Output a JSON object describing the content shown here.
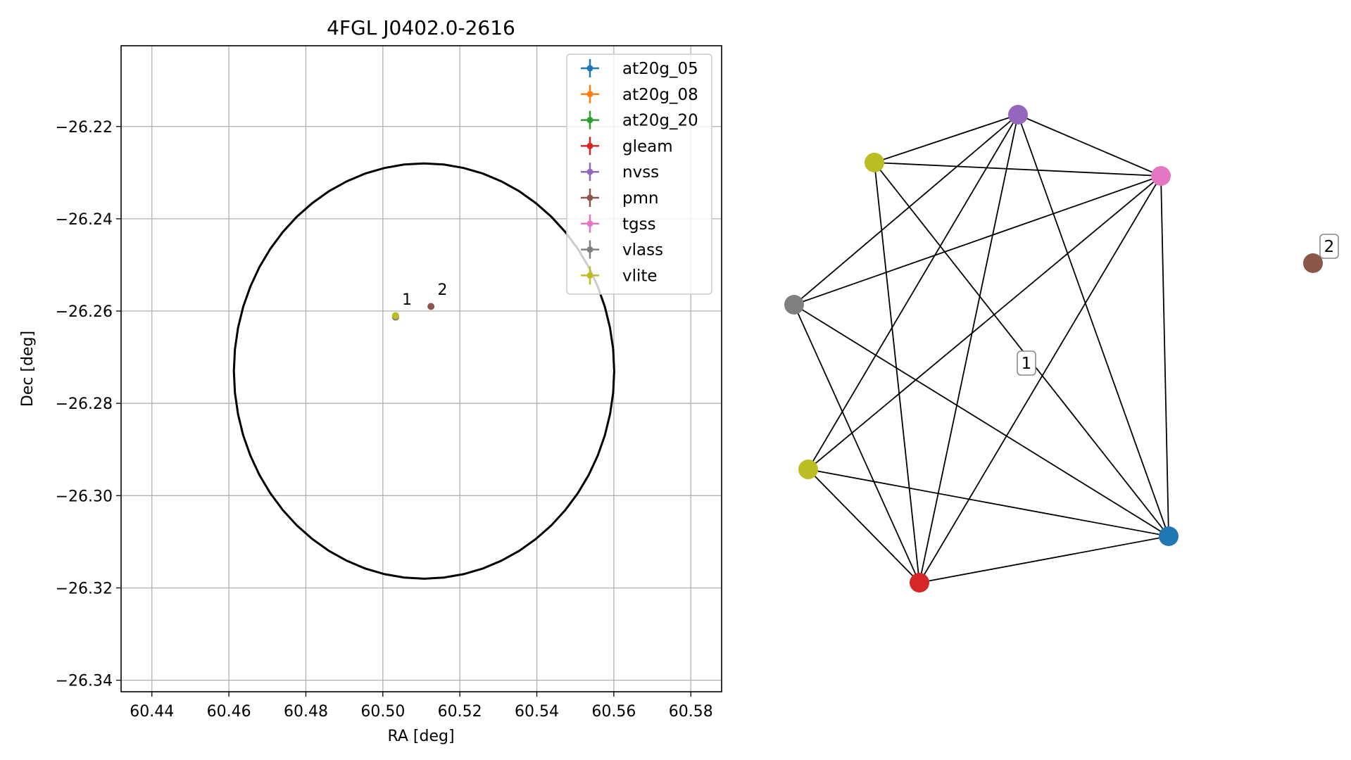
{
  "chart_data": [
    {
      "type": "scatter",
      "title": "4FGL J0402.0-2616",
      "xlabel": "RA [deg]",
      "ylabel": "Dec [deg]",
      "xlim": [
        60.432,
        60.588
      ],
      "ylim": [
        -26.3425,
        -26.2025
      ],
      "xticks": [
        "60.44",
        "60.46",
        "60.48",
        "60.50",
        "60.52",
        "60.54",
        "60.56",
        "60.58"
      ],
      "xtick_values": [
        60.44,
        60.46,
        60.48,
        60.5,
        60.52,
        60.54,
        60.56,
        60.58
      ],
      "yticks": [
        "−26.22",
        "−26.24",
        "−26.26",
        "−26.28",
        "−26.30",
        "−26.32",
        "−26.34"
      ],
      "ytick_values": [
        -26.22,
        -26.24,
        -26.26,
        -26.28,
        -26.3,
        -26.32,
        -26.34
      ],
      "grid": true,
      "legend_position": "top-right",
      "series": [
        {
          "name": "at20g_05",
          "color": "#1f77b4",
          "x": [
            60.5033
          ],
          "y": [
            -26.2613
          ]
        },
        {
          "name": "at20g_08",
          "color": "#ff7f0e",
          "x": [
            60.5033
          ],
          "y": [
            -26.2613
          ]
        },
        {
          "name": "at20g_20",
          "color": "#2ca02c",
          "x": [
            60.5033
          ],
          "y": [
            -26.2613
          ]
        },
        {
          "name": "gleam",
          "color": "#d62728",
          "x": [
            60.5033
          ],
          "y": [
            -26.2613
          ]
        },
        {
          "name": "nvss",
          "color": "#9467bd",
          "x": [
            60.5033
          ],
          "y": [
            -26.2613
          ]
        },
        {
          "name": "pmn",
          "color": "#8c564b",
          "x": [
            60.5125
          ],
          "y": [
            -26.259
          ]
        },
        {
          "name": "tgss",
          "color": "#e377c2",
          "x": [
            60.5033
          ],
          "y": [
            -26.2613
          ]
        },
        {
          "name": "vlass",
          "color": "#7f7f7f",
          "x": [
            60.5033
          ],
          "y": [
            -26.2613
          ]
        },
        {
          "name": "vlite",
          "color": "#bcbd22",
          "x": [
            60.5033
          ],
          "y": [
            -26.261
          ]
        }
      ],
      "annotations": [
        {
          "text": "1",
          "x": 60.505,
          "y": -26.2595
        },
        {
          "text": "2",
          "x": 60.5142,
          "y": -26.2574
        }
      ],
      "ellipse": {
        "center_ra": 60.5107,
        "center_dec": -26.273,
        "half_width_ra": 0.0494,
        "half_height_dec": 0.045,
        "color": "#000000"
      }
    },
    {
      "type": "network",
      "clusters": [
        {
          "label": "1",
          "nodes": [
            "nvss",
            "tgss",
            "vlite_a",
            "vlass",
            "vlite_b",
            "gleam",
            "at20g"
          ]
        },
        {
          "label": "2",
          "nodes": [
            "pmn"
          ]
        }
      ],
      "nodes": [
        {
          "id": "nvss",
          "color": "#9467bd"
        },
        {
          "id": "vlite_a",
          "color": "#bcbd22"
        },
        {
          "id": "tgss",
          "color": "#e377c2"
        },
        {
          "id": "vlass",
          "color": "#7f7f7f"
        },
        {
          "id": "vlite_b",
          "color": "#bcbd22"
        },
        {
          "id": "gleam",
          "color": "#d62728"
        },
        {
          "id": "at20g",
          "color": "#1f77b4"
        },
        {
          "id": "pmn",
          "color": "#8c564b"
        }
      ],
      "edges": [
        [
          "nvss",
          "vlite_a"
        ],
        [
          "nvss",
          "tgss"
        ],
        [
          "nvss",
          "vlass"
        ],
        [
          "nvss",
          "vlite_b"
        ],
        [
          "nvss",
          "gleam"
        ],
        [
          "nvss",
          "at20g"
        ],
        [
          "vlite_a",
          "tgss"
        ],
        [
          "vlite_a",
          "gleam"
        ],
        [
          "vlite_a",
          "at20g"
        ],
        [
          "tgss",
          "vlass"
        ],
        [
          "tgss",
          "vlite_b"
        ],
        [
          "tgss",
          "gleam"
        ],
        [
          "tgss",
          "at20g"
        ],
        [
          "vlass",
          "gleam"
        ],
        [
          "vlass",
          "at20g"
        ],
        [
          "vlite_b",
          "gleam"
        ],
        [
          "vlite_b",
          "at20g"
        ],
        [
          "gleam",
          "at20g"
        ]
      ]
    }
  ]
}
